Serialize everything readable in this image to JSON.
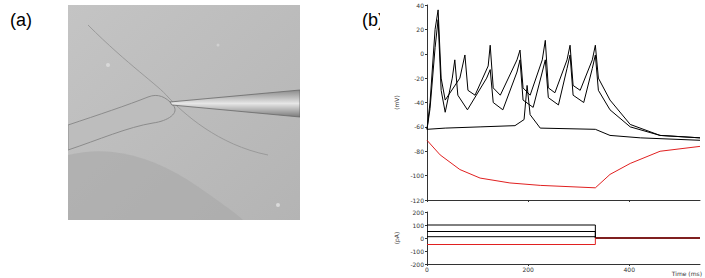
{
  "panel_labels": [
    "(a)",
    "(b)"
  ],
  "chart_data": [
    {
      "type": "line",
      "ylabel": "(mV)",
      "xlim": [
        0,
        540
      ],
      "xticks": [
        0,
        200,
        400
      ],
      "ylim": [
        -120,
        40
      ],
      "yticks": [
        -120,
        -100,
        -80,
        -60,
        -40,
        -20,
        0,
        20,
        40
      ],
      "tick_labels": "y",
      "series": [
        {
          "color": "#000000",
          "x": [
            0,
            6,
            16,
            22,
            28,
            36,
            65,
            75,
            81,
            95,
            121,
            125,
            131,
            145,
            178,
            184,
            190,
            204,
            228,
            234,
            240,
            253,
            277,
            283,
            289,
            303,
            327,
            333,
            339,
            362,
            402,
            461,
            540
          ],
          "values": [
            -62,
            -40,
            20,
            36,
            -20,
            -38,
            -20,
            -1,
            -30,
            -34,
            -10,
            7,
            -28,
            -34,
            -5,
            3,
            -28,
            -34,
            -5,
            11,
            -28,
            -32,
            -5,
            7,
            -26,
            -30,
            -5,
            7,
            -20,
            -38,
            -58,
            -67,
            -69
          ]
        },
        {
          "color": "#000000",
          "x": [
            0,
            6,
            16,
            22,
            28,
            36,
            50,
            55,
            61,
            80,
            118,
            125,
            131,
            150,
            178,
            184,
            190,
            210,
            228,
            234,
            240,
            260,
            277,
            283,
            289,
            310,
            327,
            333,
            339,
            362,
            402,
            461,
            540
          ],
          "values": [
            -62,
            -45,
            5,
            28,
            -30,
            -48,
            -20,
            -5,
            -34,
            -46,
            -20,
            -13,
            -40,
            -46,
            -15,
            -5,
            -38,
            -44,
            -15,
            -5,
            -36,
            -42,
            -12,
            -1,
            -34,
            -40,
            -12,
            -1,
            -30,
            -46,
            -60,
            -67,
            -69
          ]
        },
        {
          "color": "#000000",
          "x": [
            0,
            36,
            105,
            174,
            192,
            198,
            204,
            224,
            333,
            362,
            422,
            540
          ],
          "values": [
            -62,
            -61,
            -60,
            -59,
            -54,
            -26,
            -50,
            -61,
            -62,
            -67,
            -69,
            -71
          ]
        },
        {
          "color": "#e02020",
          "x": [
            0,
            26,
            65,
            105,
            164,
            224,
            333,
            362,
            402,
            461,
            540
          ],
          "values": [
            -71,
            -83,
            -95,
            -102,
            -106,
            -108,
            -110,
            -99,
            -90,
            -80,
            -76
          ]
        }
      ]
    },
    {
      "type": "line",
      "xlabel": "Time (ms)",
      "ylabel": "(pA)",
      "xlim": [
        0,
        540
      ],
      "xticks": [
        0,
        200,
        400
      ],
      "ylim": [
        -200,
        200
      ],
      "yticks": [
        -200,
        -100,
        0,
        100,
        200
      ],
      "tick_labels": true,
      "series": [
        {
          "color": "#000000",
          "x": [
            0,
            333,
            333,
            540
          ],
          "values": [
            100,
            100,
            0,
            0
          ]
        },
        {
          "color": "#000000",
          "x": [
            0,
            333,
            333,
            540
          ],
          "values": [
            50,
            50,
            0,
            0
          ]
        },
        {
          "color": "#000000",
          "x": [
            0,
            333,
            333,
            540
          ],
          "values": [
            10,
            10,
            0,
            0
          ]
        },
        {
          "color": "#e02020",
          "x": [
            0,
            333,
            333,
            540
          ],
          "values": [
            -50,
            -50,
            0,
            0
          ]
        }
      ]
    }
  ]
}
